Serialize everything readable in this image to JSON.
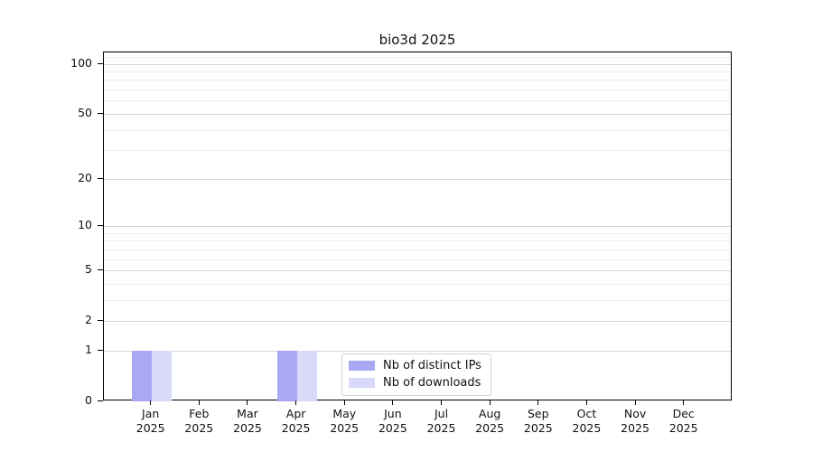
{
  "chart_data": {
    "type": "bar",
    "title": "bio3d 2025",
    "x_labels": [
      {
        "month": "Jan",
        "year": "2025"
      },
      {
        "month": "Feb",
        "year": "2025"
      },
      {
        "month": "Mar",
        "year": "2025"
      },
      {
        "month": "Apr",
        "year": "2025"
      },
      {
        "month": "May",
        "year": "2025"
      },
      {
        "month": "Jun",
        "year": "2025"
      },
      {
        "month": "Jul",
        "year": "2025"
      },
      {
        "month": "Aug",
        "year": "2025"
      },
      {
        "month": "Sep",
        "year": "2025"
      },
      {
        "month": "Oct",
        "year": "2025"
      },
      {
        "month": "Nov",
        "year": "2025"
      },
      {
        "month": "Dec",
        "year": "2025"
      }
    ],
    "series": [
      {
        "name": "Nb of distinct IPs",
        "color": "#a8a8f5",
        "values": [
          1,
          0,
          0,
          1,
          0,
          0,
          0,
          0,
          0,
          0,
          0,
          0
        ]
      },
      {
        "name": "Nb of downloads",
        "color": "#d9d9fa",
        "values": [
          1,
          0,
          0,
          1,
          0,
          0,
          0,
          0,
          0,
          0,
          0,
          0
        ]
      }
    ],
    "y_scale": "log1p",
    "ylim": [
      0,
      117
    ],
    "y_ticks": [
      0,
      1,
      2,
      5,
      10,
      20,
      50,
      100
    ],
    "y_minor_gridlines": [
      3,
      4,
      6,
      7,
      8,
      9,
      30,
      40,
      60,
      70,
      80,
      90,
      110
    ],
    "grid": true,
    "legend_position": "bottom-center"
  },
  "colors": {
    "bar_distinct_ips": "#a8a8f5",
    "bar_downloads": "#d9d9fa",
    "grid_major": "#d6d6d6",
    "grid_minor": "#ededed",
    "axis": "#000000",
    "text": "#111111",
    "legend_border": "#d2d2d2",
    "background": "#ffffff"
  }
}
